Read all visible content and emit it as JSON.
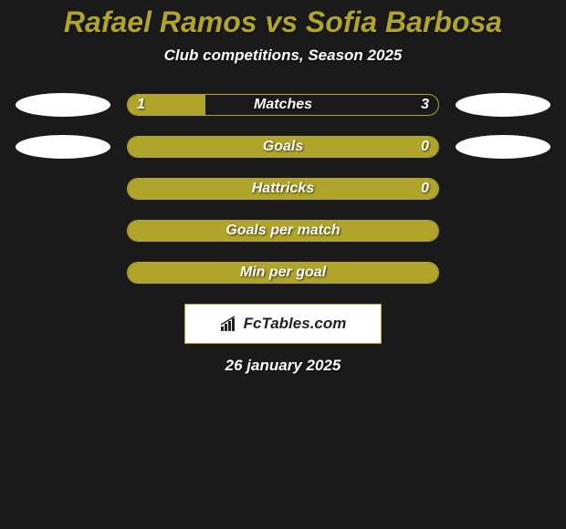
{
  "colors": {
    "background": "#1a1a1a",
    "title_color": "#b0a52a",
    "text_color": "#ffffff",
    "bar_empty_bg": "#1a1a1a",
    "bar_fill_color": "#b0a52a",
    "bar_border": "#b0a52a",
    "oval_fill": "#ffffff",
    "brand_bg": "#ffffff",
    "brand_text": "#222222",
    "brand_border": "#b0a52a"
  },
  "title": {
    "text": "Rafael Ramos vs Sofia Barbosa",
    "fontsize": 32
  },
  "subtitle": {
    "text": "Club competitions, Season 2025",
    "fontsize": 17
  },
  "bar_label_fontsize": 16,
  "bar_value_fontsize": 16,
  "rows": [
    {
      "label": "Matches",
      "left_value": "1",
      "right_value": "3",
      "fill_percent": 25,
      "show_left_oval": true,
      "show_right_oval": true
    },
    {
      "label": "Goals",
      "left_value": "",
      "right_value": "0",
      "fill_percent": 100,
      "show_left_oval": true,
      "show_right_oval": true
    },
    {
      "label": "Hattricks",
      "left_value": "",
      "right_value": "0",
      "fill_percent": 100,
      "show_left_oval": false,
      "show_right_oval": false
    },
    {
      "label": "Goals per match",
      "left_value": "",
      "right_value": "",
      "fill_percent": 100,
      "show_left_oval": false,
      "show_right_oval": false
    },
    {
      "label": "Min per goal",
      "left_value": "",
      "right_value": "",
      "fill_percent": 100,
      "show_left_oval": false,
      "show_right_oval": false
    }
  ],
  "brand": {
    "text": "FcTables.com",
    "fontsize": 17
  },
  "date": {
    "text": "26 january 2025",
    "fontsize": 17
  }
}
